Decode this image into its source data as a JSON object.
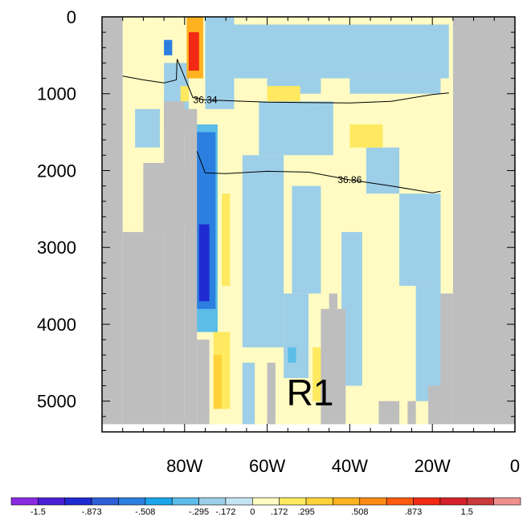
{
  "chart_data": {
    "type": "heatmap",
    "title": "",
    "xlabel": "",
    "ylabel": "",
    "panel_label": "R1",
    "x_range": [
      -100,
      0
    ],
    "y_range": [
      0,
      5400
    ],
    "y_reversed": true,
    "x_ticks": [
      {
        "value": -80,
        "label": "80W"
      },
      {
        "value": -60,
        "label": "60W"
      },
      {
        "value": -40,
        "label": "40W"
      },
      {
        "value": -20,
        "label": "20W"
      },
      {
        "value": 0,
        "label": "0"
      }
    ],
    "y_ticks": [
      {
        "value": 0,
        "label": "0"
      },
      {
        "value": 1000,
        "label": "1000"
      },
      {
        "value": 2000,
        "label": "2000"
      },
      {
        "value": 3000,
        "label": "3000"
      },
      {
        "value": 4000,
        "label": "4000"
      },
      {
        "value": 5000,
        "label": "5000"
      }
    ],
    "colorbar": {
      "labels": [
        "-1.5",
        "-.873",
        "-.508",
        "-.295",
        "-.172",
        "0",
        ".172",
        ".295",
        ".508",
        ".873",
        "1.5"
      ],
      "colors": [
        "#8a2be2",
        "#4b1fd6",
        "#1f2bd0",
        "#2f5fd8",
        "#2b7fe0",
        "#1ba6ec",
        "#5bbde8",
        "#9dcfe8",
        "#c6e4f2",
        "#fffbc3",
        "#ffe960",
        "#ffd23a",
        "#ffb21f",
        "#ff8a14",
        "#ff5a0f",
        "#f22a15",
        "#d4202a",
        "#c93a3a",
        "#f08f8f"
      ]
    },
    "land_color": "#bebebe",
    "contours": [
      {
        "label": "36.34",
        "points": [
          [
            -95,
            770
          ],
          [
            -90,
            820
          ],
          [
            -85,
            860
          ],
          [
            -82,
            820
          ],
          [
            -81.8,
            550
          ],
          [
            -80.5,
            720
          ],
          [
            -78,
            1050
          ],
          [
            -75,
            1080
          ],
          [
            -60,
            1110
          ],
          [
            -40,
            1120
          ],
          [
            -30,
            1100
          ],
          [
            -20,
            1010
          ],
          [
            -16,
            990
          ]
        ]
      },
      {
        "label": "36.86",
        "points": [
          [
            -77,
            1750
          ],
          [
            -75,
            2030
          ],
          [
            -70,
            2040
          ],
          [
            -60,
            2010
          ],
          [
            -50,
            2020
          ],
          [
            -40,
            2120
          ],
          [
            -30,
            2200
          ],
          [
            -20,
            2290
          ],
          [
            -18,
            2270
          ]
        ]
      }
    ],
    "regions": [
      {
        "value": 0.1,
        "x0": -95,
        "x1": -15,
        "y0": 0,
        "y1": 5300
      },
      {
        "value": -0.1,
        "x0": -85,
        "x1": -79,
        "y0": 600,
        "y1": 1500
      },
      {
        "value": -0.1,
        "x0": -75,
        "x1": -68,
        "y0": 0,
        "y1": 1200
      },
      {
        "value": -0.1,
        "x0": -68,
        "x1": -16,
        "y0": 100,
        "y1": 800
      },
      {
        "value": -0.1,
        "x0": -60,
        "x1": -47,
        "y0": 800,
        "y1": 1000
      },
      {
        "value": -0.1,
        "x0": -40,
        "x1": -18,
        "y0": 800,
        "y1": 1000
      },
      {
        "value": -0.1,
        "x0": -62,
        "x1": -44,
        "y0": 1100,
        "y1": 1800
      },
      {
        "value": -0.1,
        "x0": -66,
        "x1": -56,
        "y0": 1800,
        "y1": 4300
      },
      {
        "value": -0.1,
        "x0": -54,
        "x1": -47,
        "y0": 2200,
        "y1": 3600
      },
      {
        "value": -0.1,
        "x0": -56,
        "x1": -50,
        "y0": 3600,
        "y1": 4700
      },
      {
        "value": -0.1,
        "x0": -42,
        "x1": -37,
        "y0": 2800,
        "y1": 4800
      },
      {
        "value": -0.1,
        "x0": -36,
        "x1": -28,
        "y0": 1700,
        "y1": 2300
      },
      {
        "value": -0.1,
        "x0": -28,
        "x1": -18,
        "y0": 2300,
        "y1": 3500
      },
      {
        "value": -0.1,
        "x0": -24,
        "x1": -18,
        "y0": 3500,
        "y1": 5000
      },
      {
        "value": -0.1,
        "x0": -66,
        "x1": -63,
        "y0": 4500,
        "y1": 5300
      },
      {
        "value": -0.1,
        "x0": -92,
        "x1": -86,
        "y0": 1200,
        "y1": 1700
      },
      {
        "value": -0.1,
        "x0": -85,
        "x1": -80,
        "y0": 1900,
        "y1": 2700
      },
      {
        "value": 0.2,
        "x0": -60,
        "x1": -52,
        "y0": 900,
        "y1": 1100
      },
      {
        "value": 0.2,
        "x0": -40,
        "x1": -32,
        "y0": 1400,
        "y1": 1700
      },
      {
        "value": 0.2,
        "x0": -71,
        "x1": -69,
        "y0": 2300,
        "y1": 3500
      },
      {
        "value": 0.2,
        "x0": -49,
        "x1": -47,
        "y0": 4300,
        "y1": 5000
      },
      {
        "value": 0.25,
        "x0": -73,
        "x1": -69,
        "y0": 4100,
        "y1": 5100
      },
      {
        "value": 0.35,
        "x0": -73,
        "x1": -71,
        "y0": 4400,
        "y1": 5100
      },
      {
        "value": -0.2,
        "x0": -78,
        "x1": -72,
        "y0": 1400,
        "y1": 4100
      },
      {
        "value": -0.2,
        "x0": -55,
        "x1": -53,
        "y0": 4300,
        "y1": 4500
      },
      {
        "value": -0.4,
        "x0": -77.5,
        "x1": -72.5,
        "y0": 1500,
        "y1": 3800
      },
      {
        "value": -0.7,
        "x0": -76.5,
        "x1": -74,
        "y0": 2700,
        "y1": 3700
      },
      {
        "value": -0.5,
        "x0": -85,
        "x1": -83,
        "y0": 300,
        "y1": 500
      },
      {
        "value": 0.4,
        "x0": -79.5,
        "x1": -75.5,
        "y0": 0,
        "y1": 800
      },
      {
        "value": 1.0,
        "x0": -79,
        "x1": -76.5,
        "y0": 200,
        "y1": 700
      },
      {
        "value": 0.2,
        "x0": -81,
        "x1": -79,
        "y0": 900,
        "y1": 1100
      },
      {
        "value": "land",
        "x0": -100,
        "x1": -95,
        "y0": 0,
        "y1": 5300
      },
      {
        "value": "land",
        "x0": -95,
        "x1": -85,
        "y0": 2800,
        "y1": 5300
      },
      {
        "value": "land",
        "x0": -85,
        "x1": -80,
        "y0": 1100,
        "y1": 5300
      },
      {
        "value": "land",
        "x0": -80,
        "x1": -77,
        "y0": 1200,
        "y1": 5300
      },
      {
        "value": "land",
        "x0": -77,
        "x1": -74,
        "y0": 4200,
        "y1": 5300
      },
      {
        "value": "land",
        "x0": -90,
        "x1": -84,
        "y0": 1900,
        "y1": 2800
      },
      {
        "value": "land",
        "x0": -15,
        "x1": 0,
        "y0": 0,
        "y1": 5300
      },
      {
        "value": "land",
        "x0": -18,
        "x1": -15,
        "y0": 3600,
        "y1": 5300
      },
      {
        "value": "land",
        "x0": -21,
        "x1": -18,
        "y0": 4800,
        "y1": 5300
      },
      {
        "value": "land",
        "x0": -47,
        "x1": -41,
        "y0": 3800,
        "y1": 5300
      },
      {
        "value": "land",
        "x0": -45,
        "x1": -43,
        "y0": 3600,
        "y1": 3800
      },
      {
        "value": "land",
        "x0": -60,
        "x1": -58,
        "y0": 4500,
        "y1": 5300
      },
      {
        "value": "land",
        "x0": -33,
        "x1": -28,
        "y0": 5000,
        "y1": 5300
      },
      {
        "value": "land",
        "x0": -26,
        "x1": -24,
        "y0": 5000,
        "y1": 5300
      }
    ]
  }
}
